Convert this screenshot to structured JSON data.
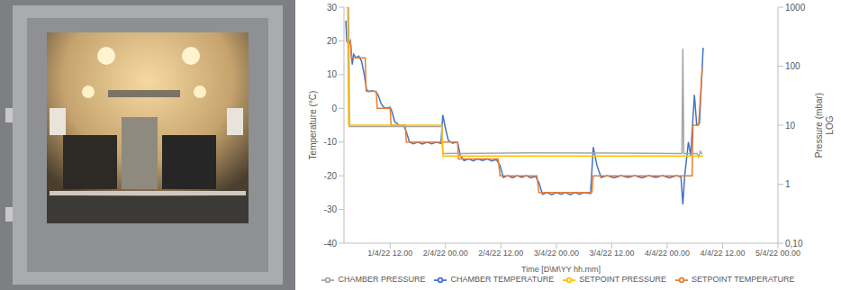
{
  "chart_data": {
    "type": "line",
    "x_label": "Time [D\\M\\YY hh.mm]",
    "y_label": "Temperature (°C)",
    "y2_label": [
      "Pressure (mbar)",
      "LOG"
    ],
    "xlim": [
      -10,
      84
    ],
    "xticks": [
      {
        "value": 0,
        "label": "1/4/22 12.00"
      },
      {
        "value": 12,
        "label": "2/4/22 00.00"
      },
      {
        "value": 24,
        "label": "2/4/22 12.00"
      },
      {
        "value": 36,
        "label": "3/4/22 00.00"
      },
      {
        "value": 48,
        "label": "3/4/22 12.00"
      },
      {
        "value": 60,
        "label": "4/4/22 00.00"
      },
      {
        "value": 72,
        "label": "4/4/22 12.00"
      },
      {
        "value": 84,
        "label": "5/4/22 00.00"
      }
    ],
    "ylim": [
      -40,
      30
    ],
    "yticks": [
      -40,
      -30,
      -20,
      -10,
      0,
      10,
      20,
      30
    ],
    "y2lim": [
      0.1,
      1000
    ],
    "y2ticks": [
      {
        "value": 0.1,
        "label": "0,10"
      },
      1,
      10,
      100,
      1000
    ],
    "log": "y2",
    "grid": false,
    "legend": "bottom",
    "series": [
      {
        "name": "CHAMBER TEMPERATURE",
        "color": "#4472c4",
        "axis": "y",
        "x": [
          -9.6,
          -9.4,
          -9.0,
          -8.6,
          -8.2,
          -7.9,
          -7.4,
          -6.8,
          -6.2,
          -5.6,
          -5.1,
          -4.6,
          -4.0,
          -3.2,
          -2.6,
          -2.0,
          -1.5,
          -1.0,
          0,
          0.4,
          1,
          2,
          3,
          3.5,
          4.2,
          5,
          6,
          7,
          8,
          9,
          10,
          11,
          11.4,
          12,
          12.6,
          13.5,
          14.6,
          15.2,
          16,
          17,
          18,
          19,
          20,
          21,
          22,
          23,
          23.8,
          24.5,
          25.5,
          26.5,
          27.5,
          28.5,
          29.5,
          30.5,
          31.5,
          32.2,
          33,
          34,
          35,
          36,
          37,
          38,
          39,
          40,
          41,
          42,
          43.4,
          44,
          44.8,
          45.7,
          47,
          48.5,
          50,
          51.5,
          53,
          54.5,
          56,
          57.5,
          59,
          60.5,
          62,
          63,
          63.4,
          63.8,
          64.6,
          65.1,
          65.5,
          65.9,
          66.4,
          67,
          67.8
        ],
        "values": [
          26,
          20,
          19,
          20,
          13,
          16,
          15,
          15.5,
          14,
          10,
          5.5,
          5,
          5.2,
          5,
          4,
          1.5,
          0.5,
          0,
          0.3,
          -1,
          -4,
          -5,
          -5.2,
          -7,
          -10,
          -10.5,
          -10,
          -10.6,
          -10,
          -10.5,
          -10,
          -10.4,
          -2,
          -6,
          -9.5,
          -10.3,
          -10,
          -14,
          -15.5,
          -15,
          -15.6,
          -15,
          -15.5,
          -15,
          -15.6,
          -15.2,
          -17,
          -20.5,
          -20,
          -20.6,
          -20,
          -20.5,
          -20,
          -20.6,
          -20.2,
          -22,
          -25.5,
          -25,
          -25.6,
          -25,
          -25.5,
          -25,
          -25.6,
          -25,
          -25.5,
          -25,
          -25.3,
          -11.5,
          -17,
          -20.5,
          -20,
          -20.6,
          -20,
          -20.5,
          -20,
          -20.6,
          -20,
          -20.5,
          -20,
          -20.6,
          -20,
          -20.4,
          -28.5,
          -20,
          -10,
          -14,
          -5,
          4,
          -5,
          -4.5,
          18
        ]
      },
      {
        "name": "SETPOINT TEMPERATURE",
        "color": "#ed7d31",
        "axis": "y",
        "x": [
          -9.6,
          -8.6,
          -8.4,
          -5.4,
          -5.2,
          -3.0,
          -2.8,
          0,
          0.2,
          3.3,
          3.5,
          14.6,
          14.8,
          23.4,
          23.8,
          31.8,
          32.2,
          43.7,
          44,
          65.4,
          65.6,
          66.8,
          67.6
        ],
        "values": [
          20,
          20,
          15,
          15,
          5,
          5,
          0,
          0,
          -5,
          -5,
          -10,
          -10,
          -15,
          -15,
          -20,
          -20,
          -25,
          -25,
          -20,
          -20,
          -5,
          -5,
          12
        ]
      },
      {
        "name": "CHAMBER PRESSURE",
        "color": "#a5a5a5",
        "axis": "y2",
        "x": [
          -9.4,
          -9.0,
          -8.8,
          11.2,
          11.4,
          30,
          50,
          63.2,
          63.4,
          63.6,
          66.5,
          66.8,
          67.2,
          67.6
        ],
        "values": [
          1000,
          1000,
          9.5,
          9.5,
          3.3,
          3.4,
          3.35,
          3.3,
          200,
          3.3,
          3.3,
          2.9,
          3.6,
          3.2
        ]
      },
      {
        "name": "SETPOINT PRESSURE",
        "color": "#ffc000",
        "axis": "y2",
        "x": [
          -9.6,
          -9.2,
          -9.0,
          11.2,
          11.4,
          67.8
        ],
        "values": [
          1000,
          1000,
          10,
          10,
          3,
          3
        ]
      }
    ]
  }
}
